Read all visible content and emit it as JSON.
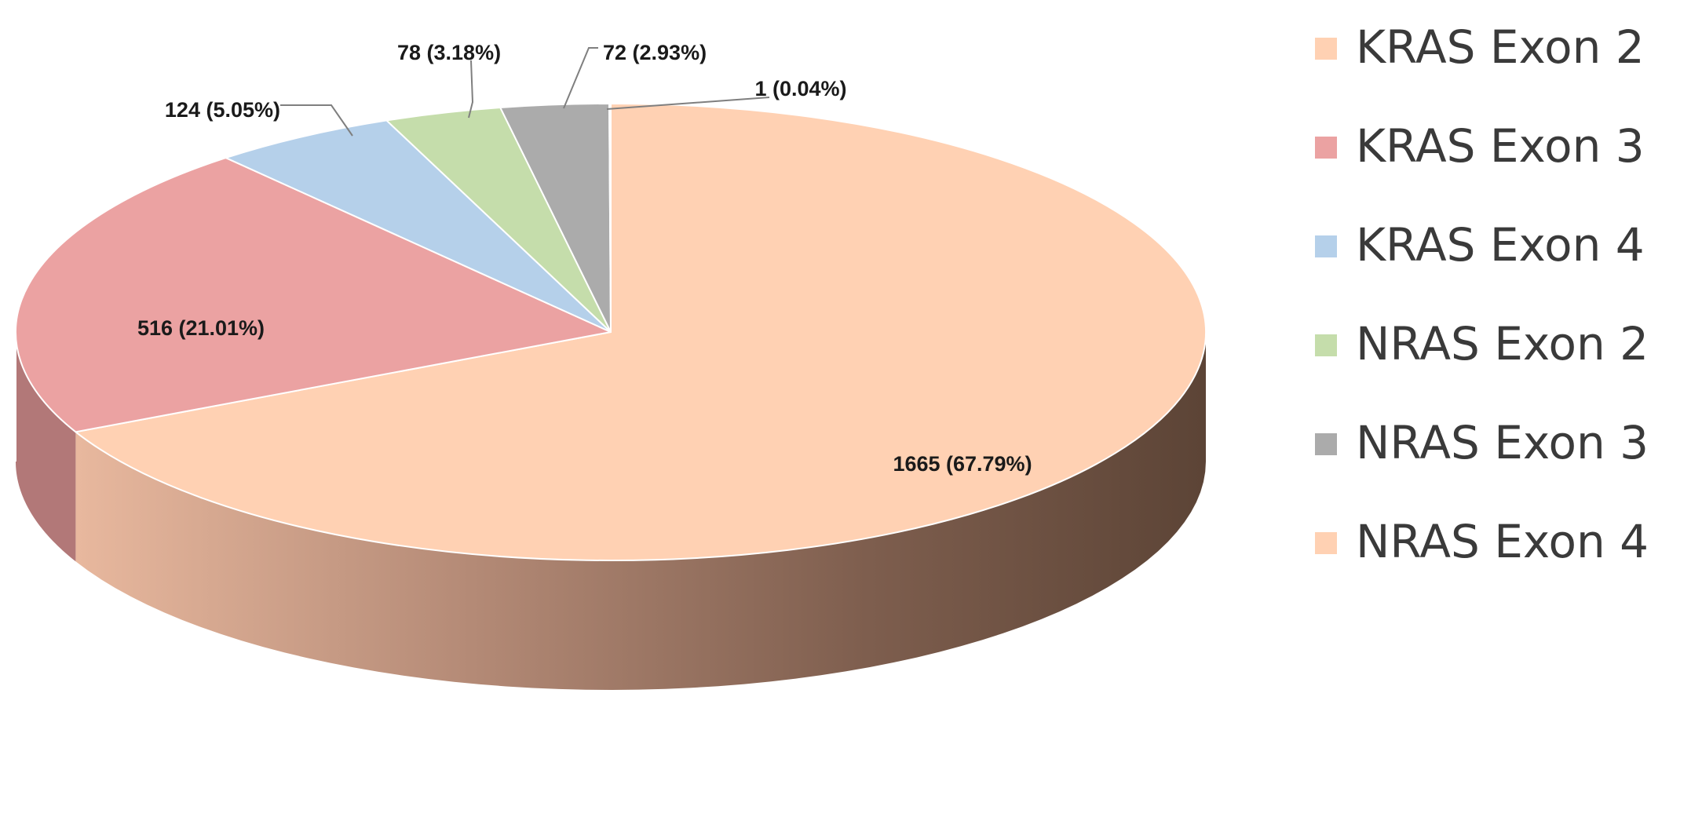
{
  "chart_data": {
    "type": "pie",
    "style": "3d",
    "legend_position": "right",
    "categories": [
      "KRAS Exon 2",
      "KRAS Exon 3",
      "KRAS Exon 4",
      "NRAS Exon 2",
      "NRAS Exon 3",
      "NRAS Exon 4"
    ],
    "values": [
      1665,
      516,
      124,
      78,
      72,
      1
    ],
    "labels": [
      "1665 (67.79%)",
      "516 (21.01%)",
      "124 (5.05%)",
      "78 (3.18%)",
      "72 (2.93%)",
      "1 (0.04%)"
    ],
    "colors": [
      "#FFD1B3",
      "#EBA2A2",
      "#B5D0EA",
      "#C5DDAB",
      "#ABABAB",
      "#FFD1B3"
    ],
    "legend": [
      {
        "label": "KRAS Exon 2",
        "color": "#FFD1B3"
      },
      {
        "label": "KRAS Exon 3",
        "color": "#EBA2A2"
      },
      {
        "label": "KRAS Exon 4",
        "color": "#B5D0EA"
      },
      {
        "label": "NRAS Exon 2",
        "color": "#C5DDAB"
      },
      {
        "label": "NRAS Exon 3",
        "color": "#ABABAB"
      },
      {
        "label": "NRAS Exon 4",
        "color": "#FFD1B3"
      }
    ]
  }
}
